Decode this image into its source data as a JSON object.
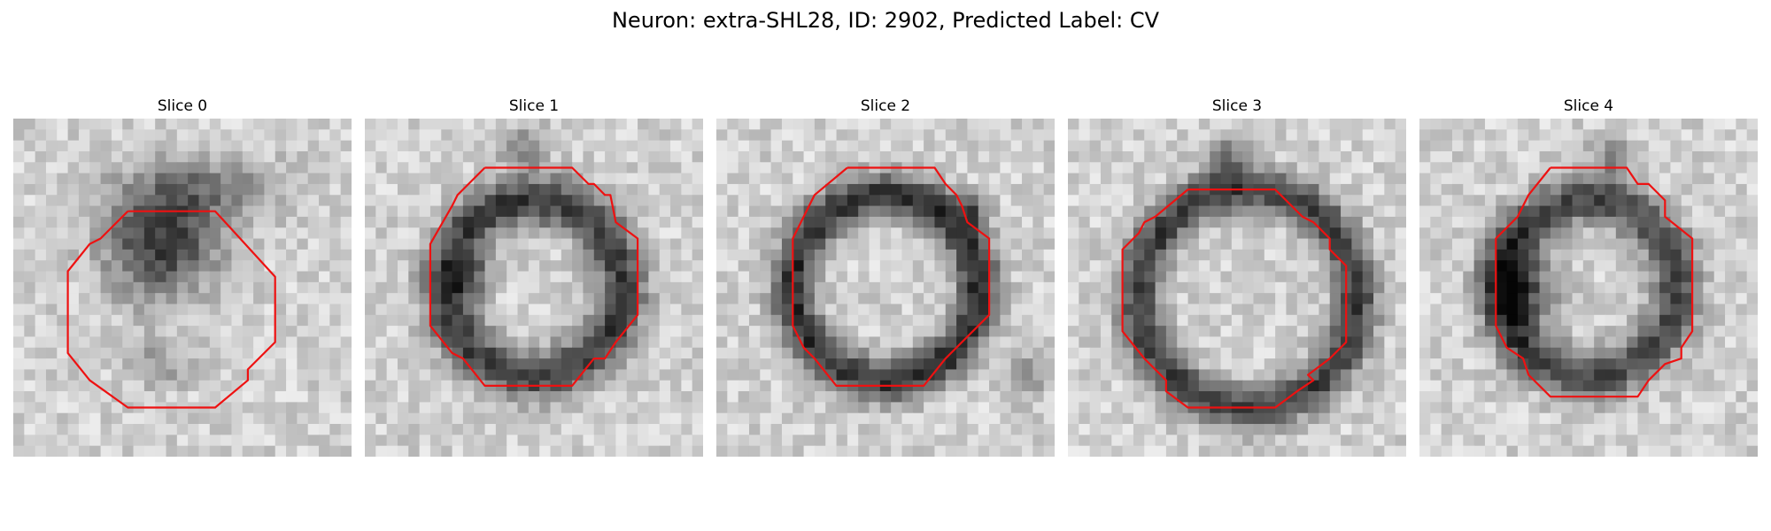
{
  "figure": {
    "title": "Neuron: extra-SHL28, ID: 2902, Predicted Label: CV"
  },
  "panels": [
    {
      "title": "Slice 0",
      "contour_color": "#ee1111"
    },
    {
      "title": "Slice 1",
      "contour_color": "#ee1111"
    },
    {
      "title": "Slice 2",
      "contour_color": "#ee1111"
    },
    {
      "title": "Slice 3",
      "contour_color": "#ee1111"
    },
    {
      "title": "Slice 4",
      "contour_color": "#ee1111"
    }
  ]
}
